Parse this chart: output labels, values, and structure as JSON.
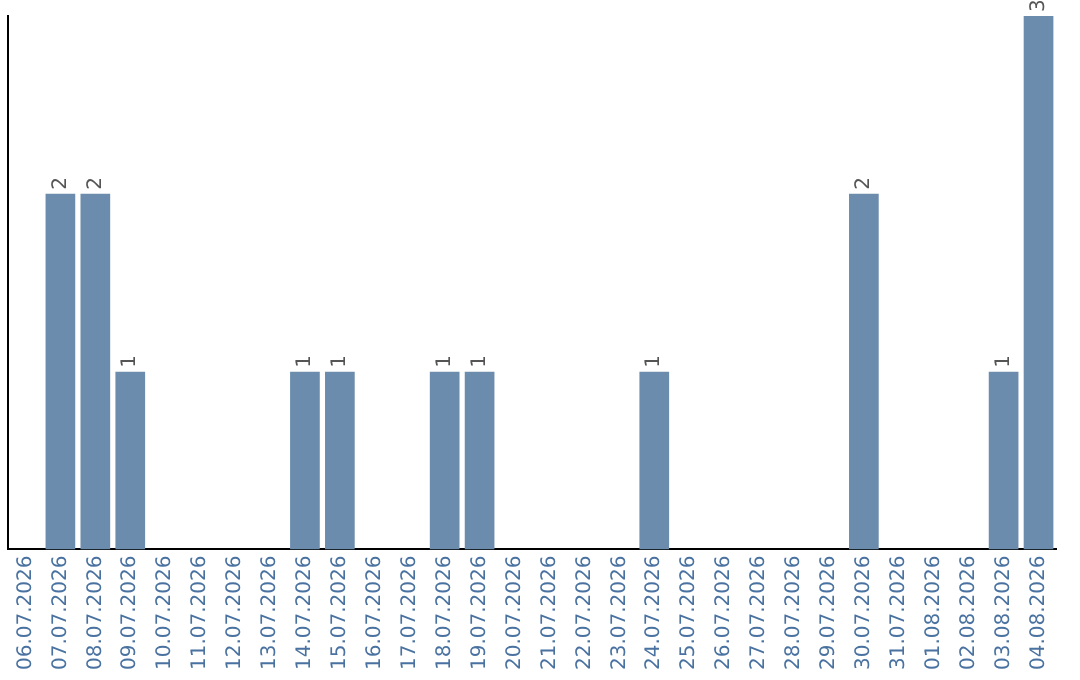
{
  "chart_data": {
    "type": "bar",
    "categories": [
      "06.07.2026",
      "07.07.2026",
      "08.07.2026",
      "09.07.2026",
      "10.07.2026",
      "11.07.2026",
      "12.07.2026",
      "13.07.2026",
      "14.07.2026",
      "15.07.2026",
      "16.07.2026",
      "17.07.2026",
      "18.07.2026",
      "19.07.2026",
      "20.07.2026",
      "21.07.2026",
      "22.07.2026",
      "23.07.2026",
      "24.07.2026",
      "25.07.2026",
      "26.07.2026",
      "27.07.2026",
      "28.07.2026",
      "29.07.2026",
      "30.07.2026",
      "31.07.2026",
      "01.08.2026",
      "02.08.2026",
      "03.08.2026",
      "04.08.2026"
    ],
    "values": [
      0,
      2,
      2,
      1,
      0,
      0,
      0,
      0,
      1,
      1,
      0,
      0,
      1,
      1,
      0,
      0,
      0,
      0,
      1,
      0,
      0,
      0,
      0,
      0,
      2,
      0,
      0,
      0,
      1,
      3
    ],
    "value_labels": [
      null,
      "2",
      "2",
      "1",
      null,
      null,
      null,
      null,
      "1",
      "1",
      null,
      null,
      "1",
      "1",
      null,
      null,
      null,
      null,
      "1",
      null,
      null,
      null,
      null,
      null,
      "2",
      null,
      null,
      null,
      "1",
      "3"
    ],
    "color": "#6b8cad",
    "grid": false,
    "legend": false,
    "tick_labels": "x"
  }
}
